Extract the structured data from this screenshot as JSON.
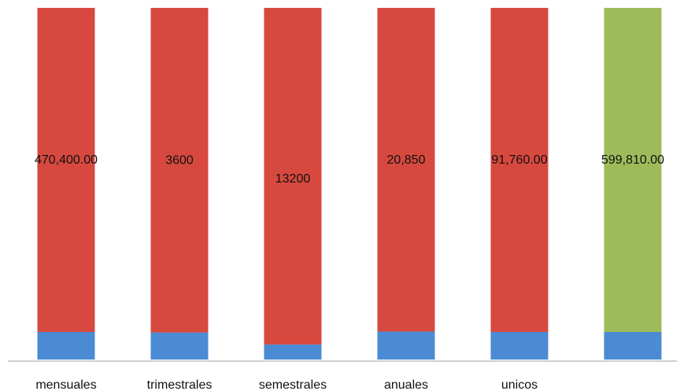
{
  "chart_data": {
    "type": "bar",
    "stacking": "percent",
    "categories": [
      "mensuales",
      "trimestrales",
      "semestrales",
      "anuales",
      "unicos",
      null
    ],
    "series": [
      {
        "color": "#4a8bd3",
        "values": [
          40000,
          300,
          590,
          1800,
          7800,
          51000
        ]
      },
      {
        "color": "#d7493f",
        "colors": [
          "#d7493f",
          "#d7493f",
          "#d7493f",
          "#d7493f",
          "#d7493f",
          "#9dbb5b"
        ],
        "values": [
          470400,
          3600,
          13200,
          20850,
          91760,
          599810
        ],
        "value_labels": [
          "470,400.00",
          "3600",
          "13200",
          "20,850",
          "91,760.00",
          "599,810.00"
        ]
      }
    ]
  }
}
